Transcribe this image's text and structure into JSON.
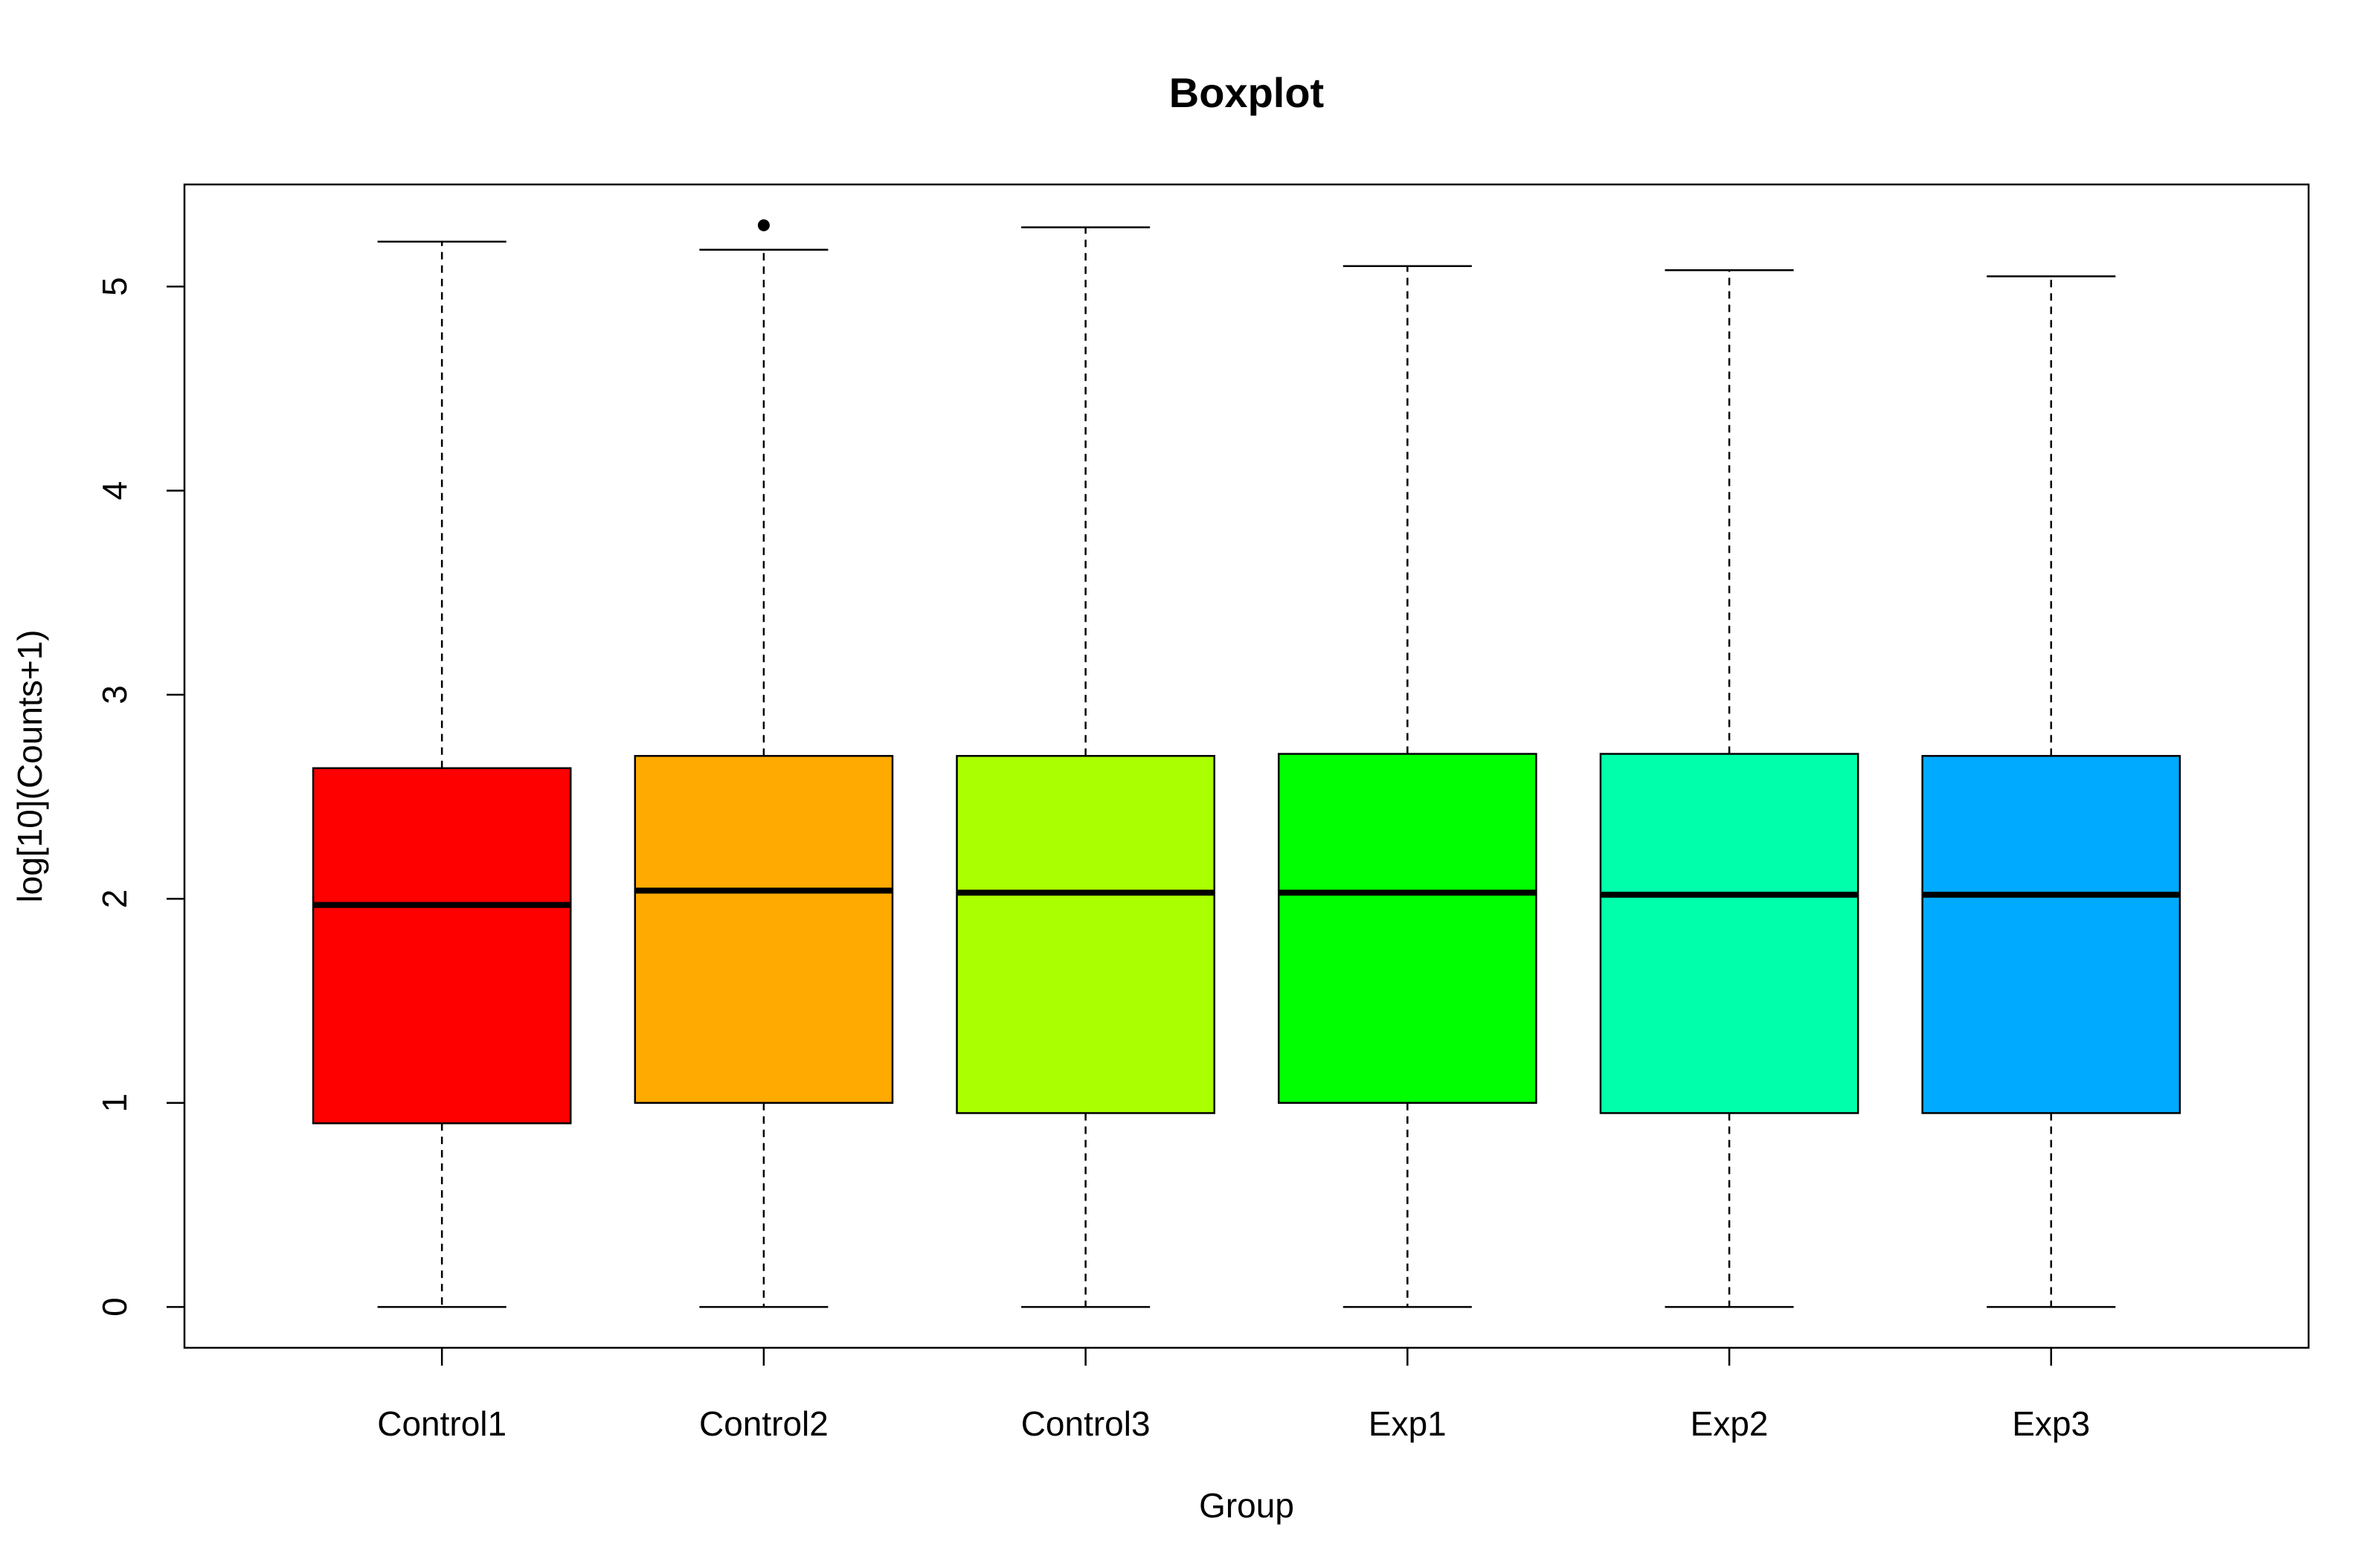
{
  "chart_data": {
    "type": "boxplot",
    "title": "Boxplot",
    "xlabel": "Group",
    "ylabel": "log[10](Counts+1)",
    "ylim": [
      -0.2,
      5.5
    ],
    "yticks": [
      0,
      1,
      2,
      3,
      4,
      5
    ],
    "grid": false,
    "legend": "none",
    "categories": [
      "Control1",
      "Control2",
      "Control3",
      "Exp1",
      "Exp2",
      "Exp3"
    ],
    "boxes": [
      {
        "category": "Control1",
        "color": "#FF0000",
        "min": 0,
        "q1": 0.9,
        "median": 1.97,
        "q3": 2.64,
        "max": 5.22,
        "outliers": []
      },
      {
        "category": "Control2",
        "color": "#FFAA00",
        "min": 0,
        "q1": 1.0,
        "median": 2.04,
        "q3": 2.7,
        "max": 5.18,
        "outliers": [
          5.3
        ]
      },
      {
        "category": "Control3",
        "color": "#AAFF00",
        "min": 0,
        "q1": 0.95,
        "median": 2.03,
        "q3": 2.7,
        "max": 5.29,
        "outliers": []
      },
      {
        "category": "Exp1",
        "color": "#00FF00",
        "min": 0,
        "q1": 1.0,
        "median": 2.03,
        "q3": 2.71,
        "max": 5.1,
        "outliers": []
      },
      {
        "category": "Exp2",
        "color": "#00FFAA",
        "min": 0,
        "q1": 0.95,
        "median": 2.02,
        "q3": 2.71,
        "max": 5.08,
        "outliers": []
      },
      {
        "category": "Exp3",
        "color": "#00AAFF",
        "min": 0,
        "q1": 0.95,
        "median": 2.02,
        "q3": 2.7,
        "max": 5.05,
        "outliers": []
      }
    ]
  }
}
